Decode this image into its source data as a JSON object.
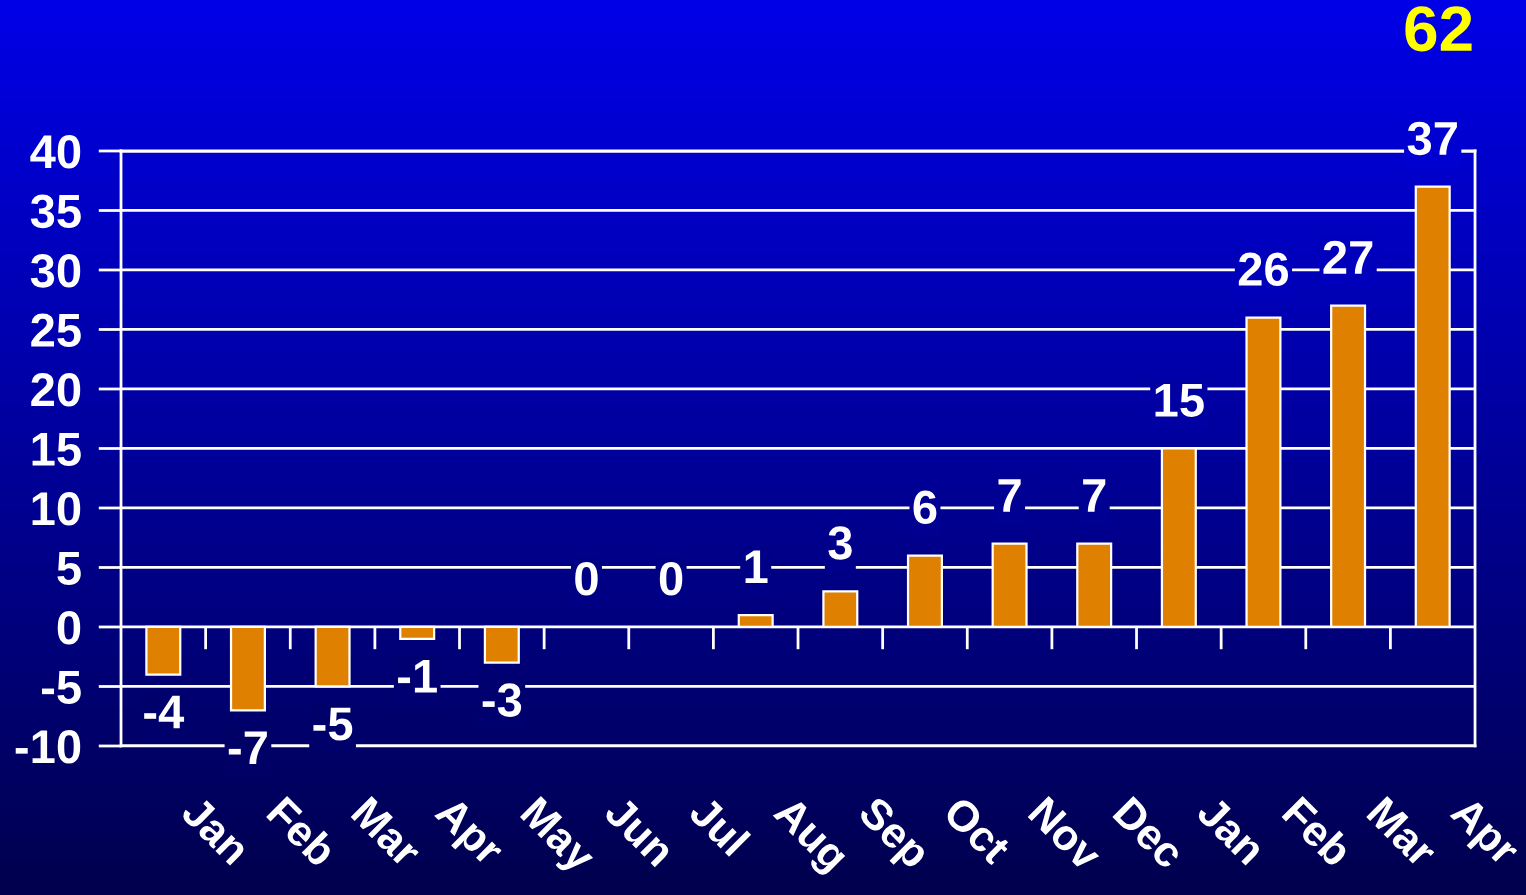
{
  "chart_data": {
    "type": "bar",
    "categories": [
      "Jan",
      "Feb",
      "Mar",
      "Apr",
      "May",
      "Jun",
      "Jul",
      "Aug",
      "Sep",
      "Oct",
      "Nov",
      "Dec",
      "Jan",
      "Feb",
      "Mar",
      "Apr"
    ],
    "values": [
      -4,
      -7,
      -5,
      -1,
      -3,
      0,
      0,
      1,
      3,
      6,
      7,
      7,
      15,
      26,
      27,
      37
    ],
    "color": "#e08000",
    "ylim": [
      -10,
      40
    ],
    "yticks": [
      -10,
      -5,
      0,
      5,
      10,
      15,
      20,
      25,
      30,
      35,
      40
    ],
    "grid": "y",
    "data_labels": true,
    "annotations": [
      "62"
    ]
  }
}
